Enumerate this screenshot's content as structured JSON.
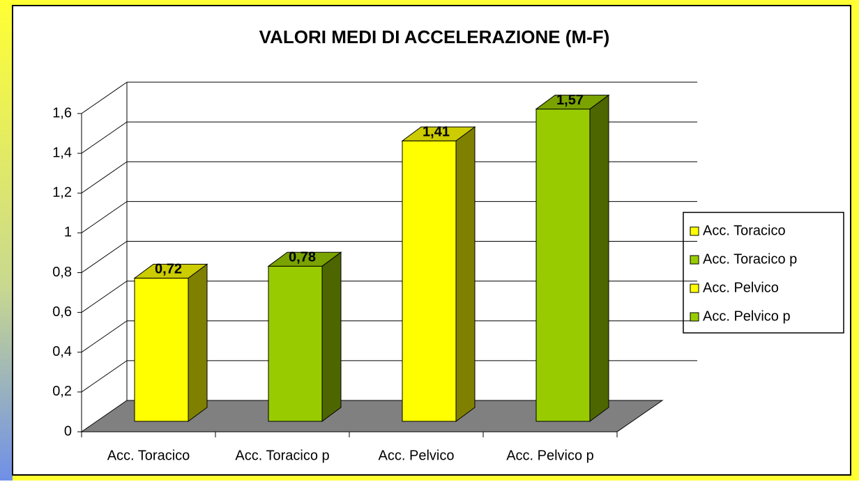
{
  "chart_data": {
    "type": "bar3d",
    "title": "VALORI MEDI DI ACCELERAZIONE (M-F)",
    "categories": [
      "Acc. Toracico",
      "Acc. Toracico p",
      "Acc. Pelvico",
      "Acc. Pelvico p"
    ],
    "values": [
      0.72,
      0.78,
      1.41,
      1.57
    ],
    "value_labels": [
      "0,72",
      "0,78",
      "1,41",
      "1,57"
    ],
    "colors": [
      "#ffff00",
      "#99cc00",
      "#ffff00",
      "#99cc00"
    ],
    "ylim": [
      0,
      1.6
    ],
    "yticks": [
      0,
      {
        "value": 0.2,
        "label": "0,2"
      },
      {
        "value": 0.4,
        "label": "0,4"
      },
      {
        "value": 0.6,
        "label": "0,6"
      },
      {
        "value": 0.8,
        "label": "0,8"
      },
      1,
      {
        "value": 1.2,
        "label": "1,2"
      },
      {
        "value": 1.4,
        "label": "1,4"
      },
      {
        "value": 1.6,
        "label": "1,6"
      }
    ],
    "grid": true,
    "legend": "right"
  }
}
